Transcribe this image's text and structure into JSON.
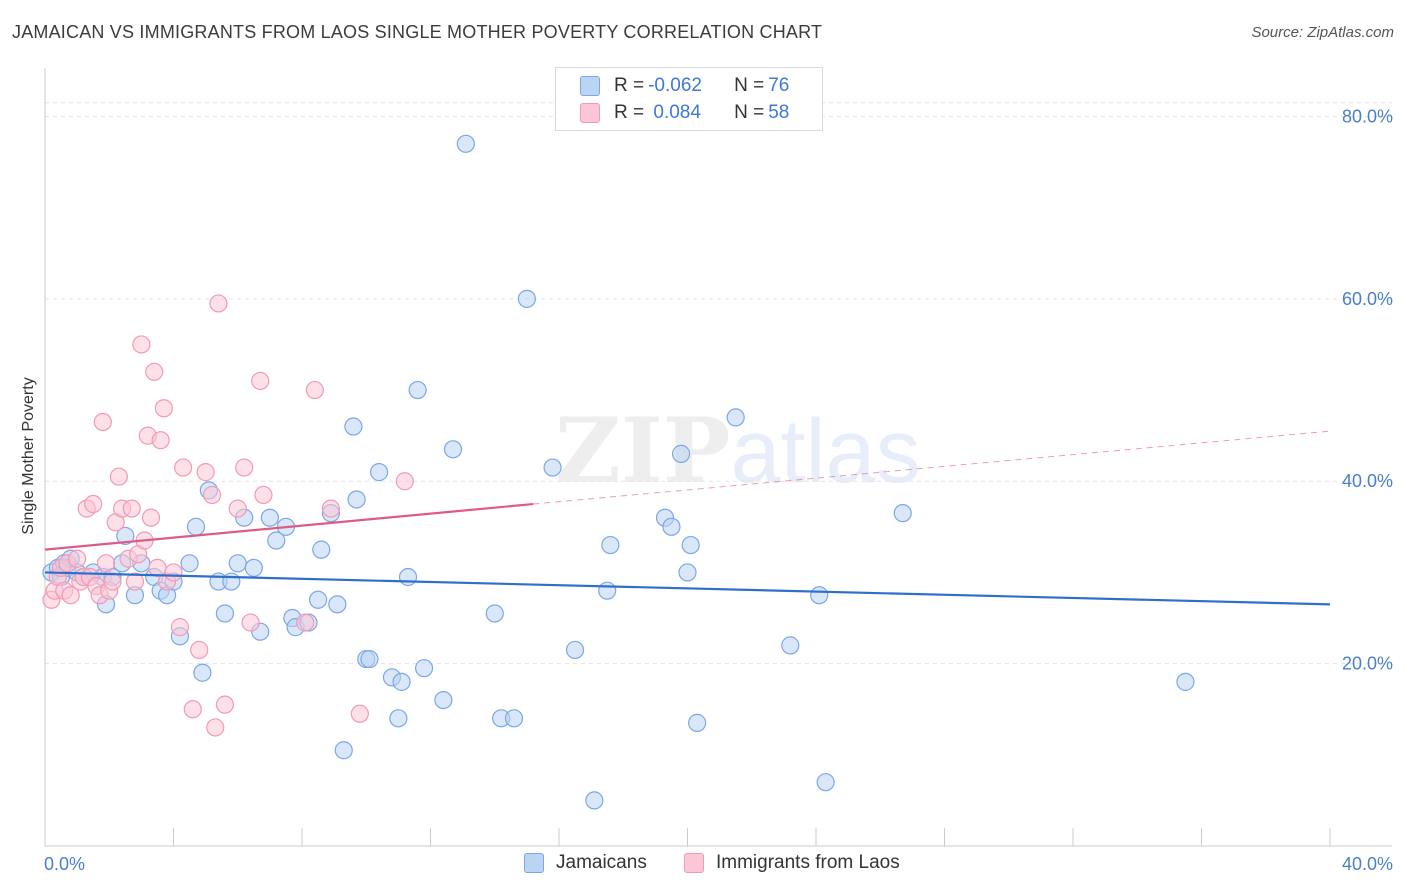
{
  "header": {
    "title": "JAMAICAN VS IMMIGRANTS FROM LAOS SINGLE MOTHER POVERTY CORRELATION CHART",
    "source": "Source: ZipAtlas.com"
  },
  "watermark": {
    "main": "ZIP",
    "sub": "atlas"
  },
  "legend": {
    "rows": [
      {
        "r_label": "R = ",
        "r_value": "-0.062",
        "n_label": "N = ",
        "n_value": "76",
        "color": "#a8c8f0"
      },
      {
        "r_label": "R = ",
        "r_value": " 0.084",
        "n_label": "N = ",
        "n_value": "58",
        "color": "#f8b8cc"
      }
    ]
  },
  "bottom_legend": {
    "series_a": "Jamaicans",
    "series_b": "Immigrants from Laos"
  },
  "chart_data": {
    "type": "scatter",
    "title": "JAMAICAN VS IMMIGRANTS FROM LAOS SINGLE MOTHER POVERTY CORRELATION CHART",
    "xlabel": "",
    "ylabel": "Single Mother Poverty",
    "xlim": [
      0,
      40
    ],
    "ylim": [
      0,
      84
    ],
    "x_tick_labels": [
      "0.0%",
      "40.0%"
    ],
    "y_ticks": [
      20,
      40,
      60,
      80
    ],
    "y_tick_labels": [
      "20.0%",
      "40.0%",
      "60.0%",
      "80.0%"
    ],
    "grid": "horizontal dashed",
    "legend_position": "top-center",
    "series": [
      {
        "name": "Jamaicans",
        "color": "#7aa8e6",
        "fill": "#bcd4f4",
        "line_color": "#2f6fcc",
        "trend": {
          "x": [
            0,
            40
          ],
          "y": [
            30.0,
            26.5
          ]
        },
        "points": [
          [
            0.2,
            30.0
          ],
          [
            0.4,
            30.5
          ],
          [
            0.5,
            29.5
          ],
          [
            0.6,
            31.0
          ],
          [
            0.7,
            30.5
          ],
          [
            0.8,
            31.5
          ],
          [
            1.0,
            30.0
          ],
          [
            1.2,
            29.5
          ],
          [
            1.5,
            30.0
          ],
          [
            1.8,
            29.5
          ],
          [
            1.9,
            26.5
          ],
          [
            2.1,
            29.5
          ],
          [
            2.4,
            31.0
          ],
          [
            2.5,
            34.0
          ],
          [
            2.8,
            27.5
          ],
          [
            3.0,
            31.0
          ],
          [
            3.4,
            29.5
          ],
          [
            3.6,
            28.0
          ],
          [
            3.8,
            27.5
          ],
          [
            4.0,
            29.0
          ],
          [
            4.2,
            23.0
          ],
          [
            4.5,
            31.0
          ],
          [
            4.7,
            35.0
          ],
          [
            4.9,
            19.0
          ],
          [
            5.1,
            39.0
          ],
          [
            5.4,
            29.0
          ],
          [
            5.6,
            25.5
          ],
          [
            5.8,
            29.0
          ],
          [
            6.0,
            31.0
          ],
          [
            6.2,
            36.0
          ],
          [
            6.5,
            30.5
          ],
          [
            6.7,
            23.5
          ],
          [
            7.0,
            36.0
          ],
          [
            7.2,
            33.5
          ],
          [
            7.5,
            35.0
          ],
          [
            7.7,
            25.0
          ],
          [
            7.8,
            24.0
          ],
          [
            8.2,
            24.5
          ],
          [
            8.5,
            27.0
          ],
          [
            8.6,
            32.5
          ],
          [
            8.9,
            36.5
          ],
          [
            9.1,
            26.5
          ],
          [
            9.3,
            10.5
          ],
          [
            9.6,
            46.0
          ],
          [
            9.7,
            38.0
          ],
          [
            10.0,
            20.5
          ],
          [
            10.1,
            20.5
          ],
          [
            10.4,
            41.0
          ],
          [
            10.8,
            18.5
          ],
          [
            11.0,
            14.0
          ],
          [
            11.1,
            18.0
          ],
          [
            11.3,
            29.5
          ],
          [
            11.6,
            50.0
          ],
          [
            11.8,
            19.5
          ],
          [
            12.4,
            16.0
          ],
          [
            12.7,
            43.5
          ],
          [
            13.1,
            77.0
          ],
          [
            14.0,
            25.5
          ],
          [
            14.2,
            14.0
          ],
          [
            14.6,
            14.0
          ],
          [
            15.0,
            60.0
          ],
          [
            15.8,
            41.5
          ],
          [
            16.5,
            21.5
          ],
          [
            17.1,
            5.0
          ],
          [
            17.5,
            28.0
          ],
          [
            17.6,
            33.0
          ],
          [
            19.3,
            36.0
          ],
          [
            19.5,
            35.0
          ],
          [
            19.8,
            43.0
          ],
          [
            20.0,
            30.0
          ],
          [
            20.1,
            33.0
          ],
          [
            20.3,
            13.5
          ],
          [
            21.5,
            47.0
          ],
          [
            23.2,
            22.0
          ],
          [
            24.1,
            27.5
          ],
          [
            24.3,
            7.0
          ],
          [
            26.7,
            36.5
          ],
          [
            35.5,
            18.0
          ]
        ]
      },
      {
        "name": "Immigrants from Laos",
        "color": "#f29ab4",
        "fill": "#fbc6d6",
        "line_color": "#e05a88",
        "trend": {
          "x": [
            0,
            15.2
          ],
          "y": [
            32.5,
            37.5
          ]
        },
        "trend_extension": {
          "x": [
            15.2,
            40
          ],
          "y": [
            37.5,
            45.5
          ]
        },
        "points": [
          [
            0.2,
            27.0
          ],
          [
            0.3,
            28.0
          ],
          [
            0.4,
            29.5
          ],
          [
            0.5,
            30.5
          ],
          [
            0.6,
            28.0
          ],
          [
            0.7,
            31.0
          ],
          [
            0.8,
            27.5
          ],
          [
            1.0,
            31.5
          ],
          [
            1.1,
            29.0
          ],
          [
            1.2,
            29.5
          ],
          [
            1.3,
            37.0
          ],
          [
            1.4,
            29.5
          ],
          [
            1.5,
            37.5
          ],
          [
            1.6,
            28.5
          ],
          [
            1.7,
            27.5
          ],
          [
            1.8,
            46.5
          ],
          [
            1.9,
            31.0
          ],
          [
            2.0,
            28.0
          ],
          [
            2.1,
            29.0
          ],
          [
            2.2,
            35.5
          ],
          [
            2.3,
            40.5
          ],
          [
            2.4,
            37.0
          ],
          [
            2.6,
            31.5
          ],
          [
            2.7,
            37.0
          ],
          [
            2.8,
            29.0
          ],
          [
            2.9,
            32.0
          ],
          [
            3.0,
            55.0
          ],
          [
            3.1,
            33.5
          ],
          [
            3.2,
            45.0
          ],
          [
            3.3,
            36.0
          ],
          [
            3.4,
            52.0
          ],
          [
            3.5,
            30.5
          ],
          [
            3.6,
            44.5
          ],
          [
            3.7,
            48.0
          ],
          [
            3.8,
            29.0
          ],
          [
            4.0,
            30.0
          ],
          [
            4.2,
            24.0
          ],
          [
            4.3,
            41.5
          ],
          [
            4.6,
            15.0
          ],
          [
            4.8,
            21.5
          ],
          [
            5.0,
            41.0
          ],
          [
            5.2,
            38.5
          ],
          [
            5.3,
            13.0
          ],
          [
            5.4,
            59.5
          ],
          [
            5.6,
            15.5
          ],
          [
            6.0,
            37.0
          ],
          [
            6.2,
            41.5
          ],
          [
            6.4,
            24.5
          ],
          [
            6.7,
            51.0
          ],
          [
            6.8,
            38.5
          ],
          [
            8.1,
            24.5
          ],
          [
            8.4,
            50.0
          ],
          [
            8.9,
            37.0
          ],
          [
            9.8,
            14.5
          ],
          [
            11.2,
            40.0
          ]
        ]
      }
    ]
  }
}
